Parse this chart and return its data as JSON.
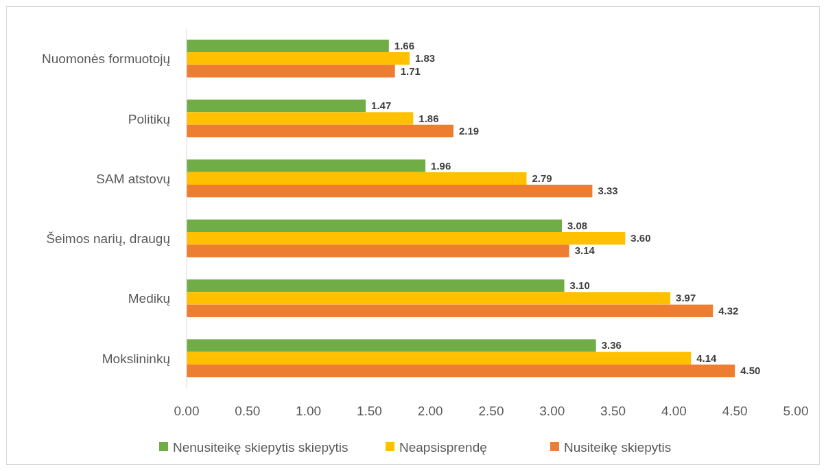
{
  "chart_data": {
    "type": "bar",
    "orientation": "horizontal",
    "categories": [
      "Nuomonės formuotojų",
      "Politikų",
      "SAM atstovų",
      "Šeimos narių, draugų",
      "Medikų",
      "Mokslininkų"
    ],
    "series": [
      {
        "name": "Nenusiteikę skiepytis skiepytis",
        "color": "#70ad47",
        "values": [
          1.66,
          1.47,
          1.96,
          3.08,
          3.1,
          3.36
        ],
        "value_labels": [
          "1.66",
          "1.47",
          "1.96",
          "3.08",
          "3.10",
          "3.36"
        ]
      },
      {
        "name": "Neapsisprendę",
        "color": "#ffc000",
        "values": [
          1.83,
          1.86,
          2.79,
          3.6,
          3.97,
          4.14
        ],
        "value_labels": [
          "1.83",
          "1.86",
          "2.79",
          "3.60",
          "3.97",
          "4.14"
        ]
      },
      {
        "name": "Nusiteikę skiepytis",
        "color": "#ed7d31",
        "values": [
          1.71,
          2.19,
          3.33,
          3.14,
          4.32,
          4.5
        ],
        "value_labels": [
          "1.71",
          "2.19",
          "3.33",
          "3.14",
          "4.32",
          "4.50"
        ]
      }
    ],
    "xlim": [
      0,
      5
    ],
    "xticks": [
      {
        "value": 0,
        "label": "0.00"
      },
      {
        "value": 0.5,
        "label": "0.50"
      },
      {
        "value": 1,
        "label": "1.00"
      },
      {
        "value": 1.5,
        "label": "1.50"
      },
      {
        "value": 2,
        "label": "2.00"
      },
      {
        "value": 2.5,
        "label": "2.50"
      },
      {
        "value": 3,
        "label": "3.00"
      },
      {
        "value": 3.5,
        "label": "3.50"
      },
      {
        "value": 4,
        "label": "4.00"
      },
      {
        "value": 4.5,
        "label": "4.50"
      },
      {
        "value": 5,
        "label": "5.00"
      }
    ],
    "grid": false,
    "legend": "bottom"
  }
}
